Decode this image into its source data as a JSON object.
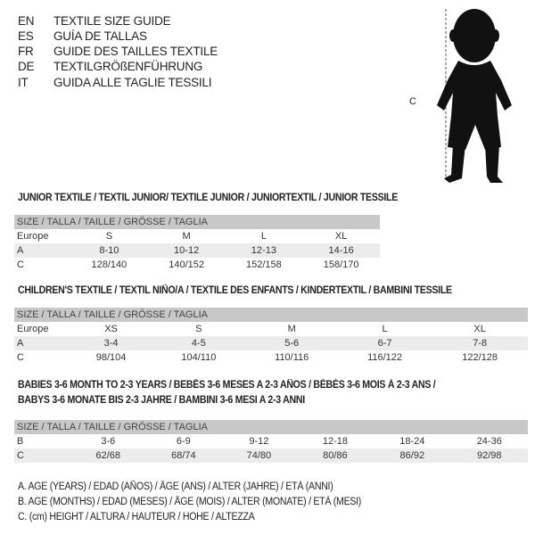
{
  "languages": [
    {
      "code": "EN",
      "text": "TEXTILE SIZE GUIDE"
    },
    {
      "code": "ES",
      "text": "GUÍA DE TALLAS"
    },
    {
      "code": "FR",
      "text": "GUIDE DES TAILLES TEXTILE"
    },
    {
      "code": "DE",
      "text": "TEXTILGRÖßENFÜHRUNG"
    },
    {
      "code": "IT",
      "text": "GUIDA ALLE TAGLIE TESSILI"
    }
  ],
  "figure": {
    "height_label": "C"
  },
  "junior": {
    "title": "JUNIOR TEXTILE / TEXTIL JUNIOR/ TEXTILE JUNIOR / JUNIORTEXTIL / JUNIOR TESSILE",
    "header": "SIZE / TALLA / TAILLE / GRÖSSE / TAGLIA",
    "rows": [
      {
        "label": "Europe",
        "values": [
          "S",
          "M",
          "L",
          "XL"
        ]
      },
      {
        "label": "A",
        "values": [
          "8-10",
          "10-12",
          "12-13",
          "14-16"
        ]
      },
      {
        "label": "C",
        "values": [
          "128/140",
          "140/152",
          "152/158",
          "158/170"
        ]
      }
    ]
  },
  "children": {
    "title": "CHILDREN'S TEXTILE / TEXTIL NIÑO/A / TEXTILE DES ENFANTS / KINDERTEXTIL / BAMBINI TESSILE",
    "header": "SIZE / TALLA / TAILLE / GRÖSSE / TAGLIA",
    "rows": [
      {
        "label": "Europe",
        "values": [
          "XS",
          "S",
          "M",
          "L",
          "XL"
        ]
      },
      {
        "label": "A",
        "values": [
          "3-4",
          "4-5",
          "5-6",
          "6-7",
          "7-8"
        ]
      },
      {
        "label": "C",
        "values": [
          "98/104",
          "104/110",
          "110/116",
          "116/122",
          "122/128"
        ]
      }
    ]
  },
  "babies": {
    "title_line1": "BABIES 3-6 MONTH TO 2-3 YEARS / BEBÉS 3-6 MESES A 2-3 AÑOS / BÉBÉS 3-6 MOIS À 2-3 ANS /",
    "title_line2": "BABYS 3-6 MONATE BIS 2-3 JAHRE / BAMBINI 3-6 MESI A 2-3 ANNI",
    "header": "SIZE / TALLA / TAILLE / GRÖSSE / TAGLIA",
    "rows": [
      {
        "label": "B",
        "values": [
          "3-6",
          "6-9",
          "9-12",
          "12-18",
          "18-24",
          "24-36"
        ]
      },
      {
        "label": "C",
        "values": [
          "62/68",
          "68/74",
          "74/80",
          "80/86",
          "86/92",
          "92/98"
        ]
      }
    ]
  },
  "legend": [
    "A. AGE (YEARS) / EDAD (AÑOS) / ÂGE (ANS) / ALTER (JAHRE) / ETÀ (ANNI)",
    "B. AGE (MONTHS) / EDAD (MESES) / ÂGE (MOIS) / ALTER (MONATE) / ETÀ (MESI)",
    "C. (cm) HEIGHT / ALTURA / HAUTEUR / HÖHE / ALTEZZA"
  ]
}
